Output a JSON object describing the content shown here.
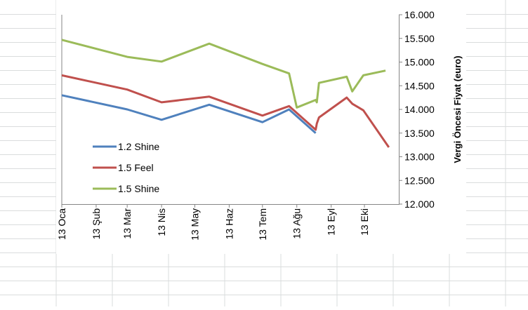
{
  "chart_data": {
    "type": "line",
    "title": "",
    "xlabel": "",
    "ylabel": "Vergi Öncesi Fiyat (euro)",
    "y_axis_position": "right",
    "ylim": [
      12000,
      16000
    ],
    "yticks": [
      12000,
      12500,
      13000,
      13500,
      14000,
      14500,
      15000,
      15500,
      16000
    ],
    "ytick_labels": [
      "12.000",
      "12.500",
      "13.000",
      "13.500",
      "14.000",
      "14.500",
      "15.000",
      "15.500",
      "16.000"
    ],
    "categories": [
      "13 Oca",
      "13 Şub",
      "13 Mar",
      "13 Nis",
      "13 May",
      "13 Haz",
      "13 Tem",
      "13 Ağu",
      "13 Eyl",
      "13 Eki"
    ],
    "xlim": [
      "2013-01-01",
      "2013-11-01"
    ],
    "x_tick_dates": [
      "2013-01-01",
      "2013-02-01",
      "2013-03-01",
      "2013-04-01",
      "2013-05-01",
      "2013-06-01",
      "2013-07-01",
      "2013-08-01",
      "2013-09-01",
      "2013-10-01"
    ],
    "grid": false,
    "legend_position": "left",
    "series": [
      {
        "name": "1.2 Shine",
        "color": "#4F81BD",
        "points": [
          [
            "2013-01-01",
            14300
          ],
          [
            "2013-03-01",
            14000
          ],
          [
            "2013-04-01",
            13780
          ],
          [
            "2013-05-14",
            14100
          ],
          [
            "2013-07-01",
            13730
          ],
          [
            "2013-07-25",
            14000
          ],
          [
            "2013-08-18",
            13500
          ]
        ]
      },
      {
        "name": "1.5 Feel",
        "color": "#C0504D",
        "points": [
          [
            "2013-01-01",
            14720
          ],
          [
            "2013-03-01",
            14420
          ],
          [
            "2013-04-01",
            14150
          ],
          [
            "2013-05-14",
            14270
          ],
          [
            "2013-07-01",
            13870
          ],
          [
            "2013-07-25",
            14070
          ],
          [
            "2013-08-18",
            13570
          ],
          [
            "2013-08-19",
            13700
          ],
          [
            "2013-08-21",
            13830
          ],
          [
            "2013-09-15",
            14250
          ],
          [
            "2013-09-20",
            14120
          ],
          [
            "2013-09-30",
            13980
          ],
          [
            "2013-10-23",
            13200
          ]
        ]
      },
      {
        "name": "1.5 Shine",
        "color": "#9BBB59",
        "points": [
          [
            "2013-01-01",
            15470
          ],
          [
            "2013-03-01",
            15110
          ],
          [
            "2013-04-01",
            15010
          ],
          [
            "2013-05-14",
            15390
          ],
          [
            "2013-07-01",
            14960
          ],
          [
            "2013-07-25",
            14760
          ],
          [
            "2013-08-01",
            14040
          ],
          [
            "2013-08-18",
            14200
          ],
          [
            "2013-08-19",
            14150
          ],
          [
            "2013-08-21",
            14560
          ],
          [
            "2013-09-15",
            14690
          ],
          [
            "2013-09-20",
            14380
          ],
          [
            "2013-09-30",
            14720
          ],
          [
            "2013-10-20",
            14820
          ]
        ]
      }
    ]
  }
}
